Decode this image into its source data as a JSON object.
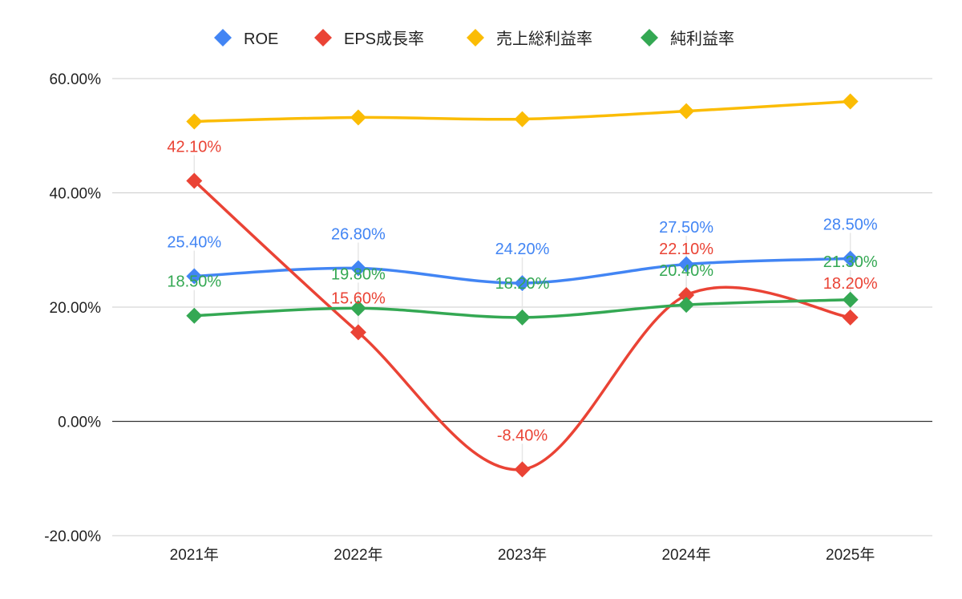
{
  "chart_data": {
    "type": "line",
    "title": "",
    "xlabel": "",
    "ylabel": "",
    "categories": [
      "2021年",
      "2022年",
      "2023年",
      "2024年",
      "2025年"
    ],
    "ylim": [
      -20,
      60
    ],
    "yticks": [
      -20,
      0,
      20,
      40,
      60
    ],
    "ytick_labels": [
      "-20.00%",
      "0.00%",
      "20.00%",
      "40.00%",
      "60.00%"
    ],
    "grid": true,
    "legend_position": "top",
    "smooth": true,
    "series": [
      {
        "name": "ROE",
        "color": "#4285F4",
        "values": [
          25.4,
          26.8,
          24.2,
          27.5,
          28.5
        ],
        "data_labels": [
          "25.40%",
          "26.80%",
          "24.20%",
          "27.50%",
          "28.50%"
        ]
      },
      {
        "name": "EPS成長率",
        "color": "#EA4335",
        "values": [
          42.1,
          15.6,
          -8.4,
          22.1,
          18.2
        ],
        "data_labels": [
          "42.10%",
          "15.60%",
          "-8.40%",
          "22.10%",
          "18.20%"
        ]
      },
      {
        "name": "売上総利益率",
        "color": "#FBBC04",
        "values": [
          52.5,
          53.2,
          52.9,
          54.3,
          56.0
        ],
        "data_labels": null
      },
      {
        "name": "純利益率",
        "color": "#34A853",
        "values": [
          18.5,
          19.8,
          18.2,
          20.4,
          21.3
        ],
        "data_labels": [
          "18.50%",
          "19.80%",
          "18.20%",
          "20.40%",
          "21.30%"
        ]
      }
    ]
  }
}
